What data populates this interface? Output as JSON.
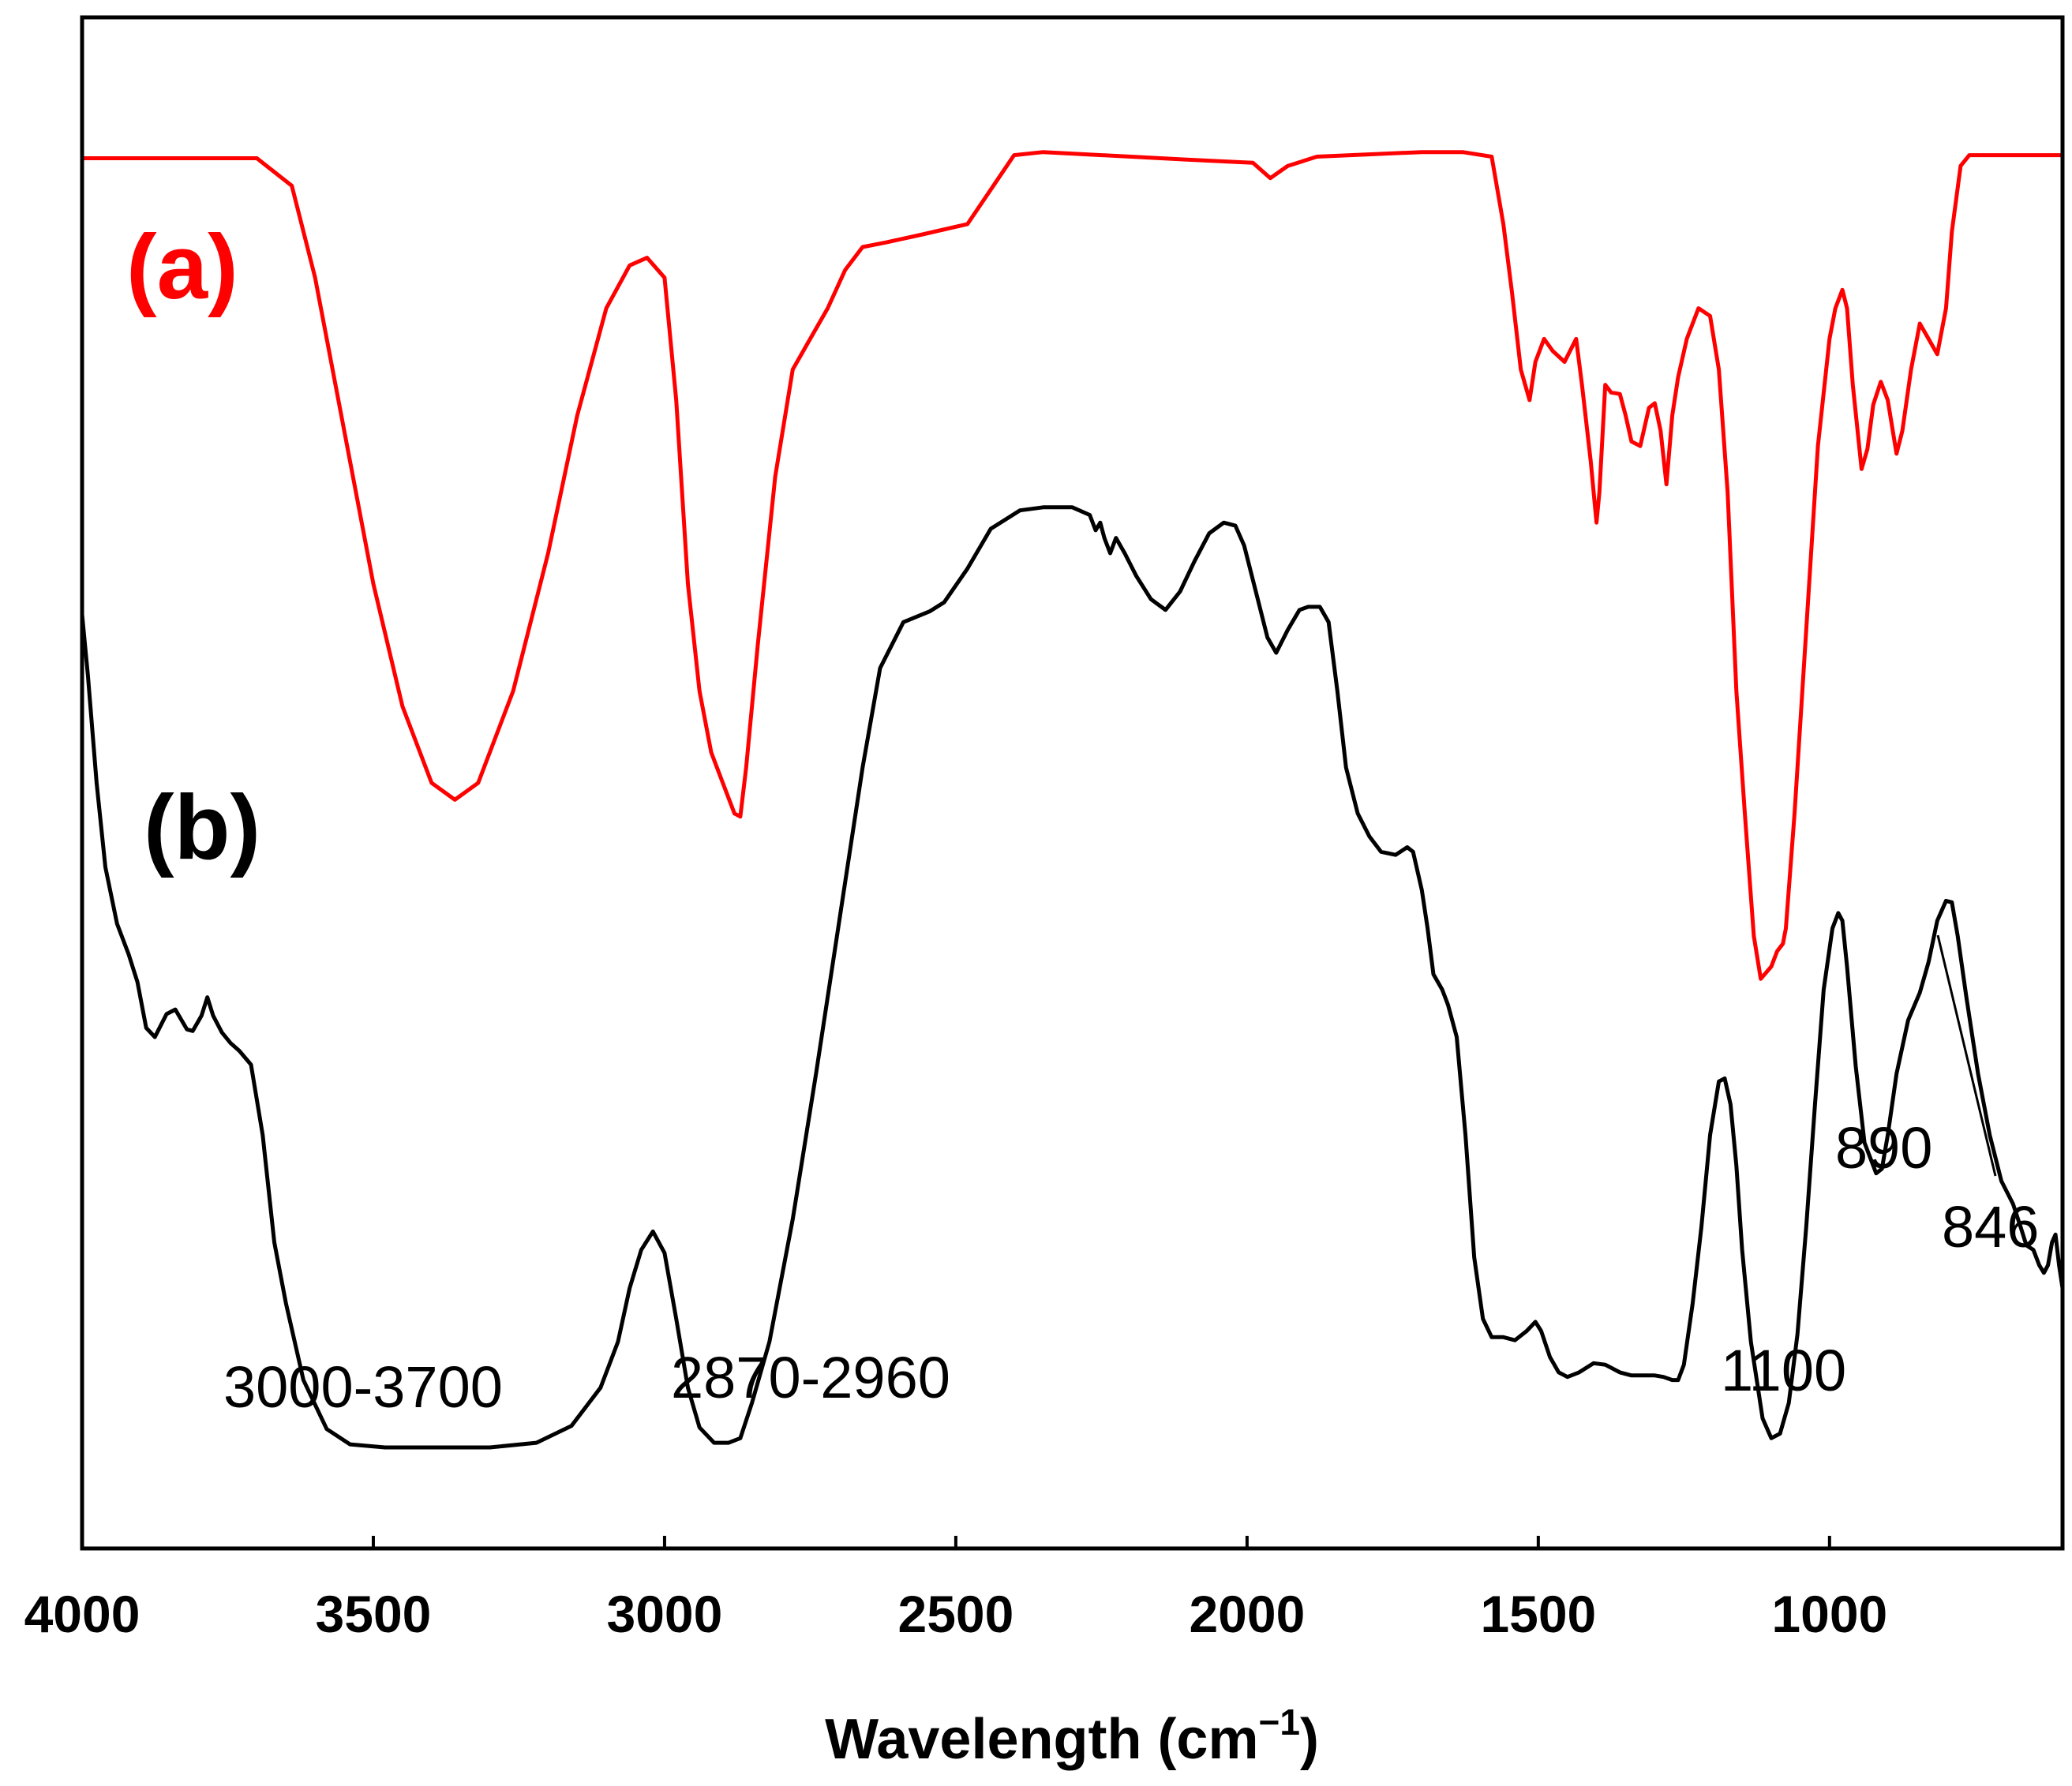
{
  "chart_data": {
    "type": "line",
    "title": "",
    "xlabel": "Wavelength (cm",
    "xlabel_sup": "−1",
    "xlabel_close": ")",
    "ylabel": "",
    "xlim": [
      4000,
      600
    ],
    "ylim": [
      0,
      100
    ],
    "grid": false,
    "x_ticks": [
      4000,
      3500,
      3000,
      2500,
      2000,
      1500,
      1000
    ],
    "tick_labels": [
      "4000",
      "3500",
      "3000",
      "2500",
      "2000",
      "1500",
      "1000"
    ],
    "series": [
      {
        "name": "(a)",
        "color": "#ff0000",
        "points": [
          [
            4000,
            90.8
          ],
          [
            3700,
            90.8
          ],
          [
            3640,
            89
          ],
          [
            3600,
            83
          ],
          [
            3550,
            73
          ],
          [
            3500,
            63
          ],
          [
            3450,
            55
          ],
          [
            3400,
            50
          ],
          [
            3360,
            48.9
          ],
          [
            3320,
            50
          ],
          [
            3260,
            56
          ],
          [
            3200,
            65
          ],
          [
            3150,
            74
          ],
          [
            3100,
            81
          ],
          [
            3060,
            83.8
          ],
          [
            3030,
            84.3
          ],
          [
            3000,
            83
          ],
          [
            2980,
            75
          ],
          [
            2960,
            63
          ],
          [
            2940,
            56
          ],
          [
            2920,
            52
          ],
          [
            2900,
            50
          ],
          [
            2880,
            48
          ],
          [
            2870,
            47.8
          ],
          [
            2860,
            51
          ],
          [
            2840,
            59
          ],
          [
            2810,
            70
          ],
          [
            2780,
            77
          ],
          [
            2750,
            79
          ],
          [
            2720,
            81
          ],
          [
            2690,
            83.5
          ],
          [
            2660,
            85
          ],
          [
            2620,
            85.3
          ],
          [
            2560,
            85.8
          ],
          [
            2480,
            86.5
          ],
          [
            2400,
            91
          ],
          [
            2350,
            91.2
          ],
          [
            2100,
            90.7
          ],
          [
            1990,
            90.5
          ],
          [
            1960,
            89.5
          ],
          [
            1930,
            90.3
          ],
          [
            1880,
            90.9
          ],
          [
            1700,
            91.2
          ],
          [
            1630,
            91.2
          ],
          [
            1580,
            90.9
          ],
          [
            1560,
            86.5
          ],
          [
            1545,
            82
          ],
          [
            1530,
            77
          ],
          [
            1515,
            75
          ],
          [
            1505,
            77.5
          ],
          [
            1490,
            79
          ],
          [
            1475,
            78.2
          ],
          [
            1455,
            77.5
          ],
          [
            1435,
            79
          ],
          [
            1425,
            76
          ],
          [
            1410,
            71
          ],
          [
            1400,
            67
          ],
          [
            1395,
            69
          ],
          [
            1385,
            76
          ],
          [
            1375,
            75.5
          ],
          [
            1360,
            75.4
          ],
          [
            1350,
            74
          ],
          [
            1340,
            72.3
          ],
          [
            1325,
            72
          ],
          [
            1310,
            74.5
          ],
          [
            1300,
            74.8
          ],
          [
            1290,
            73
          ],
          [
            1280,
            69.5
          ],
          [
            1270,
            74
          ],
          [
            1260,
            76.5
          ],
          [
            1245,
            79
          ],
          [
            1225,
            81
          ],
          [
            1205,
            80.5
          ],
          [
            1190,
            77
          ],
          [
            1175,
            69
          ],
          [
            1160,
            56
          ],
          [
            1145,
            47.8
          ],
          [
            1130,
            40
          ],
          [
            1118,
            37.2
          ],
          [
            1100,
            38
          ],
          [
            1090,
            39
          ],
          [
            1080,
            39.5
          ],
          [
            1075,
            40.5
          ],
          [
            1060,
            48
          ],
          [
            1040,
            60
          ],
          [
            1020,
            72
          ],
          [
            1000,
            79
          ],
          [
            990,
            81
          ],
          [
            978,
            82.2
          ],
          [
            970,
            81
          ],
          [
            960,
            76
          ],
          [
            945,
            70.5
          ],
          [
            935,
            71.8
          ],
          [
            925,
            74.7
          ],
          [
            912,
            76.2
          ],
          [
            900,
            75
          ],
          [
            885,
            71.5
          ],
          [
            875,
            73
          ],
          [
            860,
            77
          ],
          [
            845,
            80
          ],
          [
            830,
            79
          ],
          [
            815,
            78
          ],
          [
            800,
            81
          ],
          [
            790,
            86
          ],
          [
            775,
            90.3
          ],
          [
            760,
            91
          ],
          [
            700,
            91
          ],
          [
            600,
            91
          ]
        ]
      },
      {
        "name": "(b)",
        "color": "#000000",
        "points": [
          [
            4000,
            61
          ],
          [
            3990,
            57
          ],
          [
            3975,
            50
          ],
          [
            3960,
            44.5
          ],
          [
            3940,
            40.8
          ],
          [
            3920,
            38.8
          ],
          [
            3905,
            37
          ],
          [
            3890,
            34
          ],
          [
            3875,
            33.4
          ],
          [
            3855,
            34.9
          ],
          [
            3840,
            35.2
          ],
          [
            3820,
            33.9
          ],
          [
            3810,
            33.8
          ],
          [
            3795,
            34.8
          ],
          [
            3785,
            36
          ],
          [
            3775,
            34.8
          ],
          [
            3760,
            33.7
          ],
          [
            3745,
            33
          ],
          [
            3730,
            32.5
          ],
          [
            3710,
            31.6
          ],
          [
            3690,
            27
          ],
          [
            3670,
            20
          ],
          [
            3650,
            16
          ],
          [
            3620,
            11
          ],
          [
            3580,
            7.8
          ],
          [
            3540,
            6.8
          ],
          [
            3480,
            6.6
          ],
          [
            3400,
            6.6
          ],
          [
            3300,
            6.6
          ],
          [
            3220,
            6.9
          ],
          [
            3160,
            8
          ],
          [
            3110,
            10.5
          ],
          [
            3080,
            13.5
          ],
          [
            3060,
            17
          ],
          [
            3040,
            19.5
          ],
          [
            3020,
            20.7
          ],
          [
            3000,
            19.3
          ],
          [
            2980,
            15
          ],
          [
            2960,
            10.5
          ],
          [
            2940,
            7.9
          ],
          [
            2915,
            6.9
          ],
          [
            2890,
            6.9
          ],
          [
            2870,
            7.2
          ],
          [
            2850,
            9.5
          ],
          [
            2820,
            13.5
          ],
          [
            2780,
            21.5
          ],
          [
            2740,
            31
          ],
          [
            2700,
            41
          ],
          [
            2660,
            51
          ],
          [
            2630,
            57.5
          ],
          [
            2590,
            60.5
          ],
          [
            2545,
            61.2
          ],
          [
            2520,
            61.8
          ],
          [
            2480,
            64
          ],
          [
            2440,
            66.6
          ],
          [
            2390,
            67.8
          ],
          [
            2350,
            68
          ],
          [
            2300,
            68
          ],
          [
            2270,
            67.5
          ],
          [
            2260,
            66.5
          ],
          [
            2252,
            67
          ],
          [
            2245,
            66
          ],
          [
            2235,
            65
          ],
          [
            2225,
            66
          ],
          [
            2210,
            65
          ],
          [
            2190,
            63.5
          ],
          [
            2165,
            62
          ],
          [
            2140,
            61.3
          ],
          [
            2115,
            62.5
          ],
          [
            2090,
            64.5
          ],
          [
            2065,
            66.3
          ],
          [
            2040,
            67
          ],
          [
            2020,
            66.8
          ],
          [
            2005,
            65.5
          ],
          [
            1985,
            62.5
          ],
          [
            1965,
            59.5
          ],
          [
            1950,
            58.5
          ],
          [
            1930,
            60
          ],
          [
            1910,
            61.3
          ],
          [
            1895,
            61.5
          ],
          [
            1875,
            61.5
          ],
          [
            1860,
            60.5
          ],
          [
            1845,
            56
          ],
          [
            1830,
            51
          ],
          [
            1810,
            48
          ],
          [
            1790,
            46.5
          ],
          [
            1770,
            45.5
          ],
          [
            1745,
            45.3
          ],
          [
            1725,
            45.8
          ],
          [
            1715,
            45.5
          ],
          [
            1700,
            43
          ],
          [
            1690,
            40.5
          ],
          [
            1680,
            37.5
          ],
          [
            1665,
            36.5
          ],
          [
            1655,
            35.5
          ],
          [
            1640,
            33.4
          ],
          [
            1625,
            27
          ],
          [
            1610,
            19
          ],
          [
            1595,
            15
          ],
          [
            1580,
            13.8
          ],
          [
            1560,
            13.8
          ],
          [
            1540,
            13.6
          ],
          [
            1520,
            14.2
          ],
          [
            1505,
            14.8
          ],
          [
            1495,
            14.2
          ],
          [
            1480,
            12.5
          ],
          [
            1465,
            11.5
          ],
          [
            1450,
            11.2
          ],
          [
            1430,
            11.5
          ],
          [
            1405,
            12.1
          ],
          [
            1385,
            12
          ],
          [
            1360,
            11.5
          ],
          [
            1340,
            11.3
          ],
          [
            1320,
            11.3
          ],
          [
            1300,
            11.3
          ],
          [
            1285,
            11.2
          ],
          [
            1270,
            11
          ],
          [
            1260,
            11
          ],
          [
            1250,
            12
          ],
          [
            1235,
            16
          ],
          [
            1220,
            21
          ],
          [
            1205,
            27
          ],
          [
            1190,
            30.5
          ],
          [
            1180,
            30.7
          ],
          [
            1170,
            29
          ],
          [
            1160,
            25
          ],
          [
            1150,
            19.5
          ],
          [
            1135,
            13.5
          ],
          [
            1115,
            8.5
          ],
          [
            1100,
            7.2
          ],
          [
            1085,
            7.5
          ],
          [
            1070,
            9.5
          ],
          [
            1055,
            14
          ],
          [
            1040,
            21
          ],
          [
            1025,
            29
          ],
          [
            1010,
            36.5
          ],
          [
            995,
            40.5
          ],
          [
            985,
            41.5
          ],
          [
            978,
            41
          ],
          [
            970,
            38
          ],
          [
            955,
            31.5
          ],
          [
            940,
            26.5
          ],
          [
            920,
            24.5
          ],
          [
            910,
            24.8
          ],
          [
            900,
            27
          ],
          [
            885,
            31
          ],
          [
            865,
            34.5
          ],
          [
            845,
            36.3
          ],
          [
            830,
            38.3
          ],
          [
            815,
            41
          ],
          [
            800,
            42.3
          ],
          [
            790,
            42.2
          ],
          [
            780,
            40
          ],
          [
            765,
            36
          ],
          [
            745,
            31
          ],
          [
            725,
            27
          ],
          [
            705,
            24
          ],
          [
            685,
            22.5
          ],
          [
            672,
            21
          ],
          [
            662,
            19.8
          ],
          [
            650,
            19.5
          ],
          [
            640,
            18.5
          ],
          [
            632,
            18
          ],
          [
            625,
            18.5
          ],
          [
            618,
            20
          ],
          [
            612,
            20.5
          ],
          [
            606,
            18.5
          ],
          [
            600,
            17
          ]
        ]
      }
    ],
    "series_labels": [
      {
        "text": "(a)",
        "color": "#ff0000"
      },
      {
        "text": "(b)",
        "color": "#000000"
      }
    ],
    "annotations": [
      {
        "text": "3000-3700"
      },
      {
        "text": "2870-2960"
      },
      {
        "text": "1100"
      },
      {
        "text": "890"
      },
      {
        "text": "846"
      }
    ]
  }
}
